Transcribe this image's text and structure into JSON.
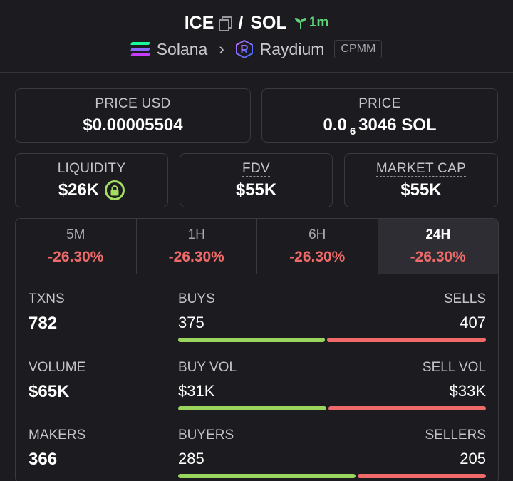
{
  "header": {
    "base_symbol": "ICE",
    "separator": "/",
    "quote_symbol": "SOL",
    "age": "1m",
    "chain": "Solana",
    "dex": "Raydium",
    "pool_type": "CPMM"
  },
  "cards": {
    "price_usd": {
      "label": "PRICE USD",
      "value": "$0.00005504"
    },
    "price": {
      "label": "PRICE",
      "value_prefix": "0.0",
      "value_subscript": "6",
      "value_suffix": "3046 SOL"
    },
    "liquidity": {
      "label": "LIQUIDITY",
      "value": "$26K"
    },
    "fdv": {
      "label": "FDV",
      "value": "$55K"
    },
    "market_cap": {
      "label": "MARKET CAP",
      "value": "$55K"
    }
  },
  "tabs": [
    {
      "name": "5M",
      "change": "-26.30%"
    },
    {
      "name": "1H",
      "change": "-26.30%"
    },
    {
      "name": "6H",
      "change": "-26.30%"
    },
    {
      "name": "24H",
      "change": "-26.30%",
      "active": true
    }
  ],
  "stats": {
    "txns": {
      "label": "TXNS",
      "value": "782"
    },
    "volume": {
      "label": "VOLUME",
      "value": "$65K"
    },
    "makers": {
      "label": "MAKERS",
      "value": "366"
    },
    "buys": {
      "left_label": "BUYS",
      "right_label": "SELLS",
      "left_value": "375",
      "right_value": "407",
      "left_fraction": 0.48
    },
    "buy_vol": {
      "left_label": "BUY VOL",
      "right_label": "SELL VOL",
      "left_value": "$31K",
      "right_value": "$33K",
      "left_fraction": 0.485
    },
    "buyers": {
      "left_label": "BUYERS",
      "right_label": "SELLERS",
      "left_value": "285",
      "right_value": "205",
      "left_fraction": 0.58
    }
  },
  "colors": {
    "positive": "#9ad65e",
    "negative": "#f06a6a",
    "age": "#5fd27a"
  },
  "icons": {
    "copy": "copy-icon",
    "age": "seedling-icon",
    "chain": "solana-logo",
    "dex": "raydium-logo",
    "lock": "lock-icon",
    "chevron": "chevron-right-icon"
  }
}
